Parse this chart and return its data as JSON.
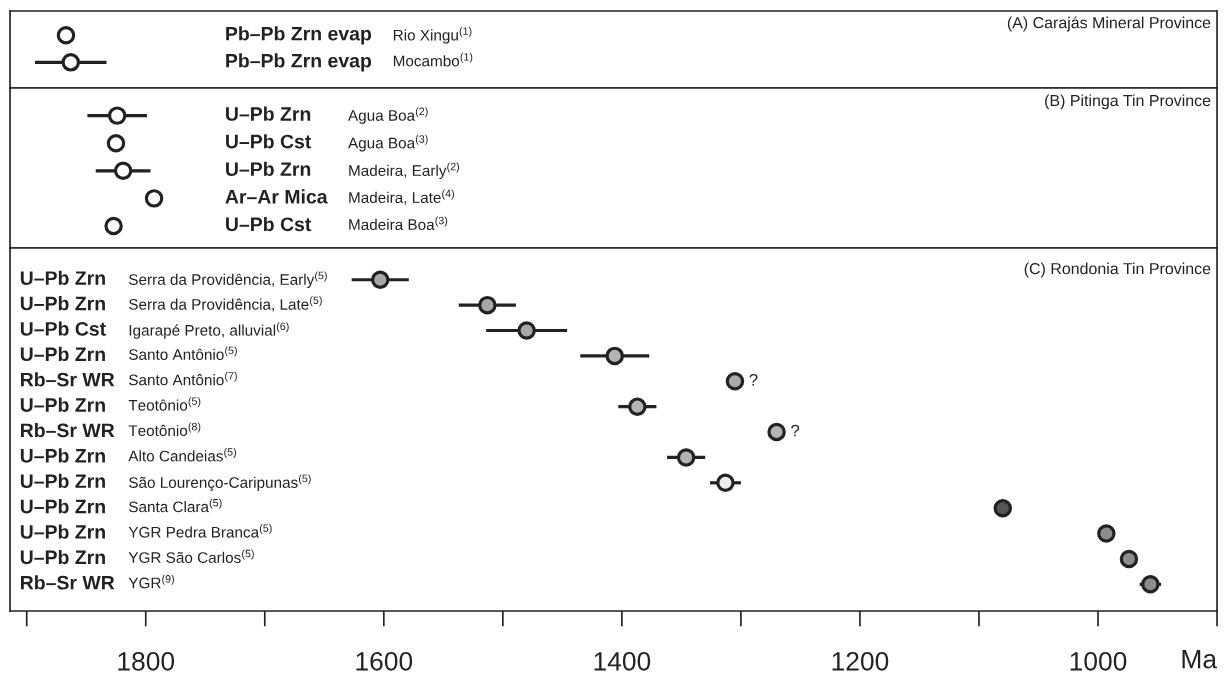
{
  "chart_data": [
    {
      "type": "scatter",
      "title": "(A) Carajás Mineral Province",
      "orientation": "horizontal",
      "marker": "circle",
      "grid": false,
      "tick_labels": "y",
      "categories": [
        "Rio Xingu$^{(1)}$",
        "Mocambo$^{(1)}$"
      ],
      "values": [
        1867,
        1863
      ],
      "errors": [
        null,
        30
      ],
      "colors": [
        "#ffffff",
        "#ffffff"
      ],
      "annotations": [
        "Pb–Pb Zrn evap",
        "Pb–Pb Zrn evap"
      ],
      "xlim": [
        1914,
        900
      ]
    },
    {
      "type": "scatter",
      "title": "(B) Pitinga Tin Province",
      "orientation": "horizontal",
      "marker": "circle",
      "grid": false,
      "tick_labels": "y",
      "categories": [
        "Agua Boa$^{(2)}$",
        "Agua Boa$^{(3)}$",
        "Madeira, Early$^{(2)}$",
        "Madeira, Late$^{(4)}$",
        "Madeira Boa$^{(3)}$"
      ],
      "values": [
        1824,
        1825,
        1819,
        1793,
        1827
      ],
      "errors": [
        25,
        null,
        23,
        null,
        null
      ],
      "colors": [
        "#ffffff",
        "#ffffff",
        "#ffffff",
        "#ffffff",
        "#ffffff"
      ],
      "annotations": [
        "U–Pb Zrn",
        "U–Pb Cst",
        "U–Pb Zrn",
        "Ar–Ar Mica",
        "U–Pb Cst"
      ],
      "xlim": [
        1914,
        900
      ]
    },
    {
      "type": "scatter",
      "title": "(C) Rondonia Tin Province",
      "xlabel": "Ma",
      "orientation": "horizontal",
      "marker": "circle",
      "grid": false,
      "categories": [
        "Serra da Providência, Early$^{(5)}$",
        "Serra da Providência, Late$^{(5)}$",
        "Igarapé Preto, alluvial$^{(6)}$",
        "Santo Antônio$^{(5)}$",
        "Santo Antônio$^{(7)}$",
        "Teotônio$^{(5)}$",
        "Teotônio$^{(8)}$",
        "Alto Candeias$^{(5)}$",
        "São Lourenço-Caripunas$^{(5)}$",
        "Santa Clara$^{(5)}$",
        "YGR Pedra Branca$^{(5)}$",
        "YGR São Carlos$^{(5)}$",
        "YGR$^{(9)}$"
      ],
      "values": [
        1603,
        1513,
        1480,
        1406,
        1305,
        1387,
        1270,
        1346,
        1313,
        1080,
        993,
        974,
        956
      ],
      "errors": [
        24,
        24,
        34,
        29,
        null,
        16,
        null,
        16,
        13,
        null,
        null,
        null,
        9
      ],
      "colors": [
        "#a8a8a8",
        "#a8a8a8",
        "#a8a8a8",
        "#b4b4b4",
        "#a8a8a8",
        "#b4b4b4",
        "#b4b4b4",
        "#b4b4b4",
        "#ececec",
        "#555555",
        "#8c8c8c",
        "#8c8c8c",
        "#8c8c8c"
      ],
      "annotations": [
        "U–Pb Zrn",
        "U–Pb Zrn",
        "U–Pb Cst",
        "U–Pb Zrn",
        "Rb–Sr WR",
        "U–Pb Zrn",
        "Rb–Sr WR",
        "U–Pb Zrn",
        "U–Pb Zrn",
        "U–Pb Zrn",
        "U–Pb Zrn",
        "U–Pb Zrn",
        "Rb–Sr WR",
        {
          "text": "?",
          "x": 1305,
          "y": "Santo Antônio$^{(7)}$"
        },
        {
          "text": "?",
          "x": 1270,
          "y": "Teotônio$^{(8)}$"
        }
      ],
      "xlim": [
        1914,
        900
      ],
      "xticks": [
        {
          "value": 1900,
          "label": null
        },
        1800,
        {
          "value": 1700,
          "label": null
        },
        1600,
        {
          "value": 1500,
          "label": null
        },
        1400,
        {
          "value": 1300,
          "label": null
        },
        1200,
        {
          "value": 1100,
          "label": null
        },
        1000,
        {
          "value": 900,
          "label": null
        }
      ]
    }
  ]
}
